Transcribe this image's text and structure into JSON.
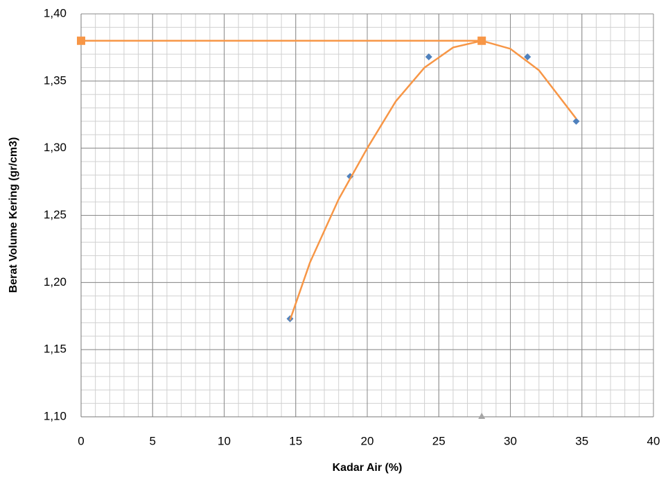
{
  "chart_data": {
    "type": "scatter",
    "xlabel": "Kadar Air (%)",
    "ylabel": "Berat Volume Kering (gr/cm3)",
    "xlim": [
      0,
      40
    ],
    "xticks": [
      0,
      5,
      10,
      15,
      20,
      25,
      30,
      35,
      40
    ],
    "ylim": [
      1.1,
      1.4
    ],
    "yticks": [
      {
        "value": 1.1,
        "label": "1,10"
      },
      {
        "value": 1.15,
        "label": "1,15"
      },
      {
        "value": 1.2,
        "label": "1,20"
      },
      {
        "value": 1.25,
        "label": "1,25"
      },
      {
        "value": 1.3,
        "label": "1,30"
      },
      {
        "value": 1.35,
        "label": "1,35"
      },
      {
        "value": 1.4,
        "label": "1,40"
      }
    ],
    "grid": true,
    "minor_grid": true,
    "series": [
      {
        "color": "#4f81bd",
        "marker": "diamond",
        "line": false,
        "x": [
          14.6,
          18.8,
          24.3,
          31.2,
          34.6
        ],
        "values": [
          1.173,
          1.279,
          1.368,
          1.368,
          1.32
        ]
      },
      {
        "color": "#f79646",
        "marker": "none",
        "line": true,
        "x": [
          14.6,
          16,
          18,
          20,
          22,
          24,
          26,
          28,
          30,
          32,
          34.6
        ],
        "values": [
          1.172,
          1.215,
          1.262,
          1.3,
          1.335,
          1.36,
          1.375,
          1.38,
          1.374,
          1.358,
          1.322
        ]
      },
      {
        "color": "#f79646",
        "marker": "square",
        "line": true,
        "x": [
          0,
          28
        ],
        "values": [
          1.38,
          1.38
        ]
      },
      {
        "color": "#a5a5a5",
        "marker": "triangle",
        "line": false,
        "x": [
          28
        ],
        "values": [
          1.1
        ]
      }
    ]
  }
}
